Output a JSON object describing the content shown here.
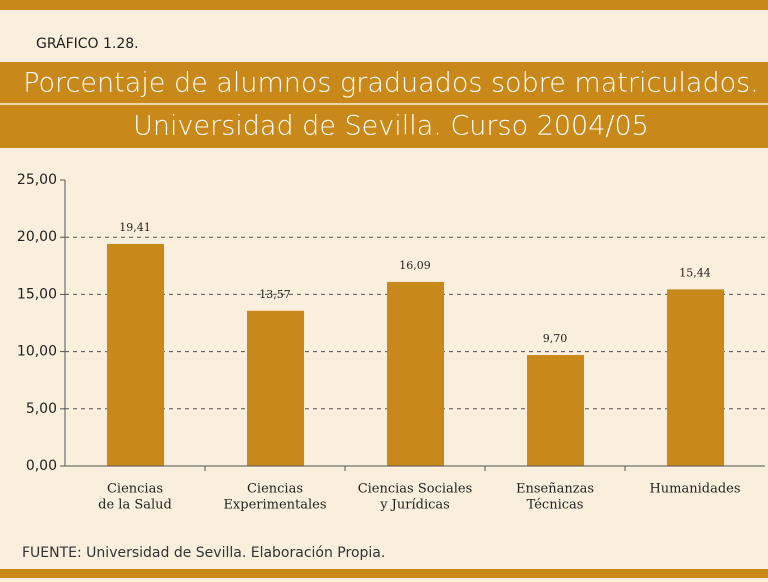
{
  "header": {
    "label": "GRÁFICO 1.28.",
    "title_lines": [
      "Porcentaje de alumnos graduados sobre matriculados.",
      "Universidad de Sevilla. Curso 2004/05"
    ]
  },
  "chart_data": {
    "type": "bar",
    "categories": [
      [
        "Ciencias",
        "de la Salud"
      ],
      [
        "Ciencias",
        "Experimentales"
      ],
      [
        "Ciencias Sociales",
        "y Jurídicas"
      ],
      [
        "Enseñanzas",
        "Técnicas"
      ],
      [
        "Humanidades"
      ]
    ],
    "values": [
      19.41,
      13.57,
      16.09,
      9.7,
      15.44
    ],
    "value_labels": [
      "19,41",
      "13,57",
      "16,09",
      "9,70",
      "15,44"
    ],
    "color": "#c8891a",
    "ylim": [
      0,
      25
    ],
    "yticks": [
      {
        "value": 0,
        "label": "0,00"
      },
      {
        "value": 5,
        "label": "5,00"
      },
      {
        "value": 10,
        "label": "10,00"
      },
      {
        "value": 15,
        "label": "15,00"
      },
      {
        "value": 20,
        "label": "20,00"
      },
      {
        "value": 25,
        "label": "25,00"
      }
    ],
    "grid": true
  },
  "footer": {
    "source": "FUENTE: Universidad de Sevilla. Elaboración Propia."
  }
}
